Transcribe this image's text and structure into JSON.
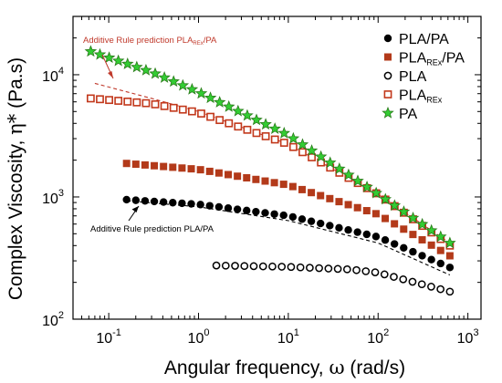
{
  "chart_data": {
    "type": "scatter",
    "x_scale": "log",
    "y_scale": "log",
    "xlim": [
      0.04,
      1400
    ],
    "ylim": [
      100,
      30000
    ],
    "xlabel_parts": {
      "main": "Angular frequency, ",
      "symbol": "ω",
      "unit": " (rad/s)"
    },
    "ylabel_parts": {
      "main": "Complex Viscosity, ",
      "symbol": "η*",
      "unit": " (Pa.s)"
    },
    "x_ticks": [
      {
        "value": 0.1,
        "base": "10",
        "exp": "-1"
      },
      {
        "value": 1,
        "base": "10",
        "exp": "0"
      },
      {
        "value": 10,
        "base": "10",
        "exp": "1"
      },
      {
        "value": 100,
        "base": "10",
        "exp": "2"
      },
      {
        "value": 1000,
        "base": "10",
        "exp": "3"
      }
    ],
    "y_ticks": [
      {
        "value": 100,
        "base": "10",
        "exp": "2"
      },
      {
        "value": 1000,
        "base": "10",
        "exp": "3"
      },
      {
        "value": 10000,
        "base": "10",
        "exp": "4"
      }
    ],
    "series": [
      {
        "name": "PLA/PA",
        "name_main": "PLA/PA",
        "name_sub": "",
        "marker": "filled-circle",
        "color": "#000000",
        "x_range": [
          0.158,
          630
        ],
        "n_points": 36,
        "y_anchors": [
          [
            0.158,
            950
          ],
          [
            1,
            870
          ],
          [
            10,
            700
          ],
          [
            100,
            470
          ],
          [
            630,
            265
          ]
        ]
      },
      {
        "name": "PLAREx/PA",
        "name_main": "PLA",
        "name_sub": "REx",
        "name_tail": "/PA",
        "marker": "filled-square",
        "color": "#b33a1a",
        "x_range": [
          0.158,
          630
        ],
        "n_points": 36,
        "y_anchors": [
          [
            0.158,
            1880
          ],
          [
            1,
            1680
          ],
          [
            10,
            1250
          ],
          [
            100,
            720
          ],
          [
            630,
            330
          ]
        ]
      },
      {
        "name": "PLA",
        "name_main": "PLA",
        "name_sub": "",
        "marker": "open-circle",
        "color": "#000000",
        "x_range": [
          1.58,
          630
        ],
        "n_points": 26,
        "y_anchors": [
          [
            1.58,
            275
          ],
          [
            10,
            268
          ],
          [
            50,
            255
          ],
          [
            100,
            240
          ],
          [
            630,
            168
          ]
        ]
      },
      {
        "name": "PLAREx",
        "name_main": "PLA",
        "name_sub": "REx",
        "name_tail": "",
        "marker": "open-square",
        "color": "#c2381b",
        "x_range": [
          0.063,
          630
        ],
        "n_points": 40,
        "y_anchors": [
          [
            0.063,
            6400
          ],
          [
            0.3,
            5800
          ],
          [
            1,
            4900
          ],
          [
            10,
            2700
          ],
          [
            100,
            1050
          ],
          [
            630,
            400
          ]
        ]
      },
      {
        "name": "PA",
        "name_main": "PA",
        "name_sub": "",
        "marker": "star",
        "color": "#33cc33",
        "edge_color": "#2a7a1a",
        "x_range": [
          0.063,
          630
        ],
        "n_points": 40,
        "y_anchors": [
          [
            0.063,
            15500
          ],
          [
            0.3,
            10500
          ],
          [
            1,
            7200
          ],
          [
            10,
            3200
          ],
          [
            100,
            1050
          ],
          [
            630,
            420
          ]
        ]
      }
    ],
    "prediction_curves": [
      {
        "for": "PLAREx/PA",
        "color": "#c0392b",
        "style": "dashed",
        "x_range": [
          0.07,
          630
        ],
        "y_anchors": [
          [
            0.07,
            8500
          ],
          [
            0.3,
            6400
          ],
          [
            1,
            5000
          ],
          [
            10,
            2700
          ],
          [
            100,
            1050
          ],
          [
            630,
            420
          ]
        ]
      },
      {
        "for": "PLA/PA",
        "color": "#000000",
        "style": "dashed",
        "x_range": [
          0.16,
          630
        ],
        "y_anchors": [
          [
            0.16,
            930
          ],
          [
            1,
            830
          ],
          [
            10,
            640
          ],
          [
            100,
            420
          ],
          [
            630,
            230
          ]
        ]
      }
    ],
    "annotations": [
      {
        "id": "annot-red",
        "text_main": "Additive Rule prediction PLA",
        "text_sub": "REx",
        "text_tail": "/PA",
        "color": "#c0392b"
      },
      {
        "id": "annot-black",
        "text_main": "Additive Rule prediction PLA/PA",
        "text_sub": "",
        "text_tail": "",
        "color": "#000000"
      }
    ],
    "legend_placement": "top-right",
    "grid": false
  }
}
